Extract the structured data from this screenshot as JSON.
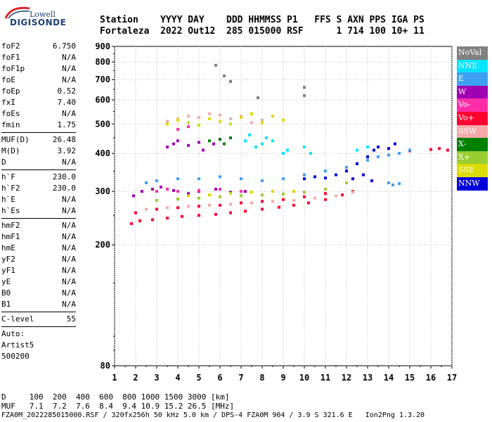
{
  "logo": {
    "line1": "Lowell",
    "line2": "DIGISONDE"
  },
  "header": {
    "line1": "Station    YYYY DAY    DDD HHMMSS P1   FFS S AXN PPS IGA PS",
    "line2": "Fortaleza  2022 Out12  285 015000 RSF      1 714 100 10+ 11"
  },
  "params": {
    "group1": [
      {
        "label": "foF2",
        "value": "6.750"
      },
      {
        "label": "foF1",
        "value": "N/A"
      },
      {
        "label": "foF1p",
        "value": "N/A"
      },
      {
        "label": "foE",
        "value": "N/A"
      },
      {
        "label": "foEp",
        "value": "0.52"
      },
      {
        "label": "fxI",
        "value": "7.40"
      },
      {
        "label": "foEs",
        "value": "N/A"
      },
      {
        "label": "fmin",
        "value": "1.75"
      }
    ],
    "group2": [
      {
        "label": "MUF(D)",
        "value": "26.48"
      },
      {
        "label": "M(D)",
        "value": "3.92"
      },
      {
        "label": "D",
        "value": "N/A"
      }
    ],
    "group3": [
      {
        "label": "h`F",
        "value": "230.0"
      },
      {
        "label": "h`F2",
        "value": "230.0"
      },
      {
        "label": "h`E",
        "value": "N/A"
      },
      {
        "label": "h`Es",
        "value": "N/A"
      }
    ],
    "group4": [
      {
        "label": "hmF2",
        "value": "N/A"
      },
      {
        "label": "hmF1",
        "value": "N/A"
      },
      {
        "label": "hmE",
        "value": "N/A"
      },
      {
        "label": "yF2",
        "value": "N/A"
      },
      {
        "label": "yF1",
        "value": "N/A"
      },
      {
        "label": "yE",
        "value": "N/A"
      },
      {
        "label": "B0",
        "value": "N/A"
      },
      {
        "label": "B1",
        "value": "N/A"
      }
    ],
    "clevel": {
      "label": "C-level",
      "value": "55"
    },
    "auto": {
      "line1": "Auto:",
      "line2": "Artist5",
      "line3": "500200"
    }
  },
  "legend": [
    {
      "label": "NoVal",
      "color": "#808080"
    },
    {
      "label": "NNE",
      "color": "#00e5ff"
    },
    {
      "label": "E",
      "color": "#3ea0f2"
    },
    {
      "label": "W",
      "color": "#a000b4"
    },
    {
      "label": "Vo-",
      "color": "#ff2ea8"
    },
    {
      "label": "Vo+",
      "color": "#ff0030"
    },
    {
      "label": "SSW",
      "color": "#f5aaaa"
    },
    {
      "label": "X-",
      "color": "#008000"
    },
    {
      "label": "X+",
      "color": "#9acd32"
    },
    {
      "label": "SSE",
      "color": "#dcdc00"
    },
    {
      "label": "NNW",
      "color": "#0000dc"
    }
  ],
  "footer": {
    "line1": "D     100  200  400  600  800 1000 1500 3000 [km]",
    "line2": "MUF   7.1  7.2  7.6  8.4  9.4 10.9 15.2 26.5 [MHz]",
    "line3": "FZA0M_2022285015000.RSF / 320fx256h 50 kHz 5.0 km / DPS-4 FZA0M 904 / 3.9 S 321.6 E   Ion2Png 1.3.20"
  },
  "chart_data": {
    "type": "scatter",
    "xlabel": "",
    "ylabel": "",
    "xlim": [
      1,
      17
    ],
    "ylim": [
      80,
      900
    ],
    "x_ticks": [
      "1",
      "2",
      "3",
      "4",
      "5",
      "6",
      "7",
      "8",
      "9",
      "10",
      "11",
      "12",
      "13",
      "14",
      "15",
      "16",
      "17"
    ],
    "y_ticks": [
      "80",
      "200",
      "300",
      "400",
      "500",
      "600",
      "700",
      "800",
      "900"
    ],
    "grid": true,
    "y_scale": "log",
    "series": [
      {
        "name": "Vo+",
        "color": "#ff0030",
        "points": [
          [
            1.8,
            235
          ],
          [
            2.2,
            240
          ],
          [
            2.8,
            242
          ],
          [
            3.5,
            245
          ],
          [
            4.2,
            248
          ],
          [
            5.0,
            250
          ],
          [
            5.8,
            252
          ],
          [
            6.5,
            255
          ],
          [
            7.2,
            258
          ],
          [
            8.0,
            262
          ],
          [
            8.8,
            266
          ],
          [
            9.5,
            270
          ],
          [
            10.2,
            275
          ],
          [
            11.0,
            282
          ],
          [
            11.8,
            292
          ],
          [
            12.3,
            300
          ],
          [
            2.0,
            255
          ],
          [
            3.0,
            262
          ],
          [
            4.0,
            265
          ],
          [
            5.0,
            268
          ],
          [
            6.0,
            270
          ],
          [
            7.0,
            275
          ],
          [
            8.0,
            278
          ],
          [
            9.0,
            282
          ],
          [
            10.0,
            288
          ],
          [
            11.0,
            295
          ],
          [
            15.0,
            408
          ],
          [
            16.0,
            412
          ],
          [
            16.4,
            415
          ],
          [
            16.8,
            410
          ]
        ]
      },
      {
        "name": "SSW",
        "color": "#f5aaaa",
        "points": [
          [
            2.5,
            262
          ],
          [
            3.5,
            265
          ],
          [
            4.5,
            268
          ],
          [
            5.5,
            270
          ],
          [
            6.5,
            272
          ],
          [
            7.5,
            275
          ],
          [
            8.5,
            278
          ],
          [
            9.5,
            280
          ],
          [
            10.5,
            285
          ],
          [
            11.5,
            290
          ],
          [
            12.3,
            298
          ],
          [
            3.5,
            510
          ],
          [
            4.0,
            520
          ],
          [
            4.5,
            530
          ],
          [
            5.0,
            525
          ],
          [
            5.5,
            540
          ],
          [
            6.0,
            535
          ],
          [
            6.5,
            520
          ],
          [
            7.0,
            530
          ],
          [
            7.5,
            505
          ],
          [
            8.0,
            515
          ]
        ]
      },
      {
        "name": "W",
        "color": "#a000b4",
        "points": [
          [
            1.9,
            290
          ],
          [
            2.3,
            300
          ],
          [
            2.8,
            305
          ],
          [
            3.2,
            310
          ],
          [
            3.8,
            302
          ],
          [
            4.5,
            295
          ],
          [
            5.0,
            300
          ],
          [
            5.8,
            305
          ],
          [
            6.5,
            298
          ],
          [
            7.2,
            300
          ],
          [
            3.5,
            420
          ],
          [
            3.8,
            430
          ],
          [
            4.0,
            440
          ],
          [
            4.5,
            425
          ],
          [
            5.0,
            435
          ],
          [
            5.2,
            410
          ],
          [
            5.7,
            430
          ],
          [
            6.0,
            445
          ]
        ]
      },
      {
        "name": "E",
        "color": "#3ea0f2",
        "points": [
          [
            2.5,
            320
          ],
          [
            3.0,
            325
          ],
          [
            4.0,
            330
          ],
          [
            5.0,
            330
          ],
          [
            6.0,
            335
          ],
          [
            7.0,
            330
          ],
          [
            8.0,
            325
          ],
          [
            9.0,
            330
          ],
          [
            10.0,
            340
          ],
          [
            11.0,
            350
          ],
          [
            12.0,
            360
          ],
          [
            12.5,
            370
          ],
          [
            13.0,
            380
          ],
          [
            13.5,
            390
          ],
          [
            14.0,
            395
          ],
          [
            14.5,
            400
          ],
          [
            15.0,
            410
          ],
          [
            14.0,
            320
          ],
          [
            14.2,
            315
          ],
          [
            14.5,
            318
          ]
        ]
      },
      {
        "name": "NNE",
        "color": "#00e5ff",
        "points": [
          [
            7.2,
            440
          ],
          [
            7.4,
            460
          ],
          [
            7.7,
            420
          ],
          [
            8.0,
            430
          ],
          [
            8.2,
            450
          ],
          [
            8.5,
            440
          ],
          [
            9.0,
            400
          ],
          [
            9.2,
            410
          ],
          [
            10.0,
            420
          ],
          [
            10.3,
            400
          ],
          [
            12.5,
            410
          ],
          [
            13.0,
            420
          ]
        ]
      },
      {
        "name": "NNW",
        "color": "#0000dc",
        "points": [
          [
            10.0,
            330
          ],
          [
            10.5,
            335
          ],
          [
            11.0,
            332
          ],
          [
            11.5,
            340
          ],
          [
            12.0,
            350
          ],
          [
            12.5,
            370
          ],
          [
            13.0,
            390
          ],
          [
            13.3,
            410
          ],
          [
            13.5,
            420
          ],
          [
            14.0,
            415
          ],
          [
            14.3,
            430
          ],
          [
            12.3,
            330
          ],
          [
            12.8,
            340
          ],
          [
            13.2,
            325
          ]
        ]
      },
      {
        "name": "SSE",
        "color": "#dcdc00",
        "points": [
          [
            3.5,
            500
          ],
          [
            4.0,
            515
          ],
          [
            4.5,
            505
          ],
          [
            5.0,
            495
          ],
          [
            5.5,
            520
          ],
          [
            6.0,
            510
          ],
          [
            6.5,
            500
          ],
          [
            7.0,
            525
          ],
          [
            7.5,
            540
          ],
          [
            8.0,
            505
          ],
          [
            8.5,
            530
          ],
          [
            9.0,
            515
          ],
          [
            4.5,
            290
          ],
          [
            5.5,
            292
          ],
          [
            6.5,
            295
          ],
          [
            7.5,
            298
          ],
          [
            8.5,
            300
          ],
          [
            9.5,
            300
          ]
        ]
      },
      {
        "name": "X+",
        "color": "#9acd32",
        "points": [
          [
            3.0,
            280
          ],
          [
            4.0,
            283
          ],
          [
            5.0,
            285
          ],
          [
            6.0,
            288
          ],
          [
            7.0,
            290
          ],
          [
            8.0,
            292
          ],
          [
            9.0,
            294
          ],
          [
            10.0,
            298
          ],
          [
            11.0,
            305
          ],
          [
            12.0,
            320
          ]
        ]
      },
      {
        "name": "X-",
        "color": "#008000",
        "points": [
          [
            5.5,
            440
          ],
          [
            6.0,
            445
          ],
          [
            6.2,
            430
          ],
          [
            6.5,
            450
          ]
        ]
      },
      {
        "name": "Vo-",
        "color": "#ff2ea8",
        "points": [
          [
            3.0,
            300
          ],
          [
            3.5,
            305
          ],
          [
            4.0,
            300
          ],
          [
            5.0,
            302
          ],
          [
            6.0,
            305
          ],
          [
            7.0,
            300
          ],
          [
            4.0,
            480
          ],
          [
            4.5,
            490
          ]
        ]
      },
      {
        "name": "NoVal",
        "color": "#808080",
        "points": [
          [
            5.8,
            780
          ],
          [
            6.2,
            720
          ],
          [
            6.5,
            690
          ],
          [
            7.8,
            610
          ],
          [
            10.0,
            620
          ],
          [
            10.0,
            660
          ]
        ]
      }
    ]
  }
}
